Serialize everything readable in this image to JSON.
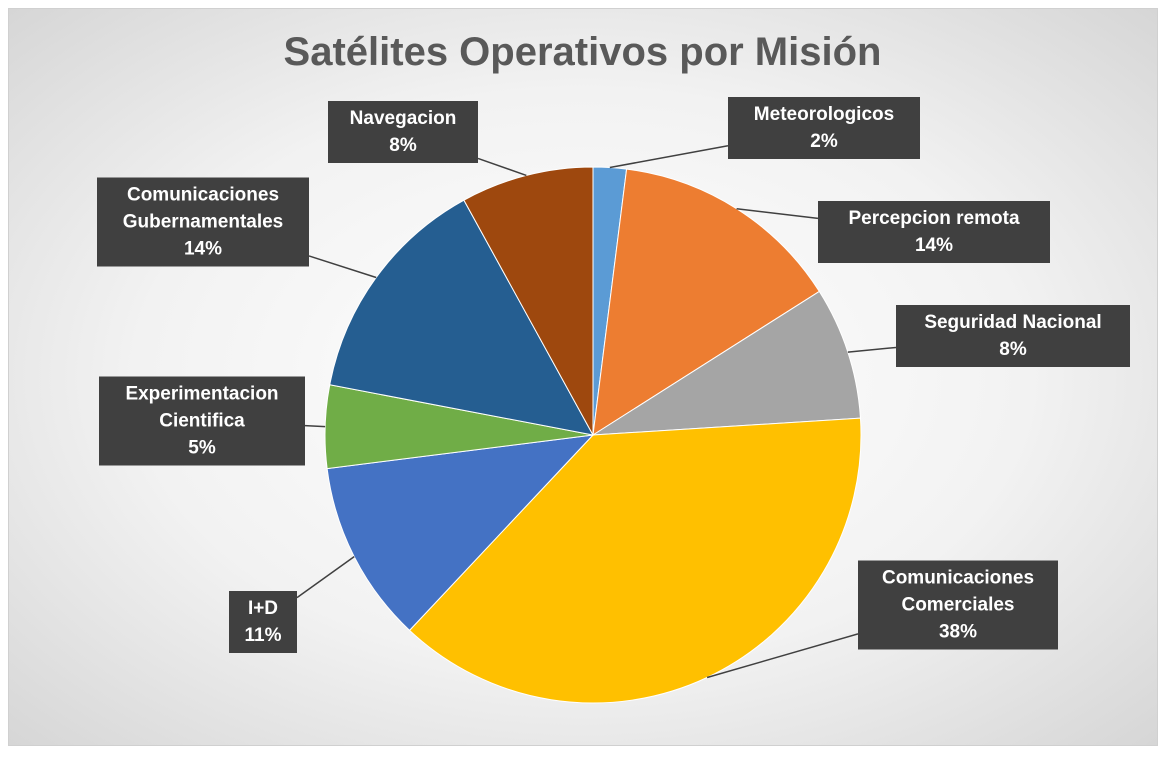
{
  "chart_data": {
    "type": "pie",
    "title": "Satélites Operativos por Misión",
    "categories": [
      "Meteorologicos",
      "Percepcion remota",
      "Seguridad Nacional",
      "Comunicaciones Comerciales",
      "I+D",
      "Experimentacion Cientifica",
      "Comunicaciones Gubernamentales",
      "Navegacion"
    ],
    "values": [
      2,
      14,
      8,
      38,
      11,
      5,
      14,
      8
    ],
    "value_labels": [
      "2%",
      "14%",
      "8%",
      "38%",
      "11%",
      "5%",
      "14%",
      "8%"
    ],
    "colors": [
      "#5b9bd5",
      "#ed7d31",
      "#a5a5a5",
      "#ffc000",
      "#4472c4",
      "#70ad47",
      "#255e91",
      "#9e480e"
    ]
  }
}
